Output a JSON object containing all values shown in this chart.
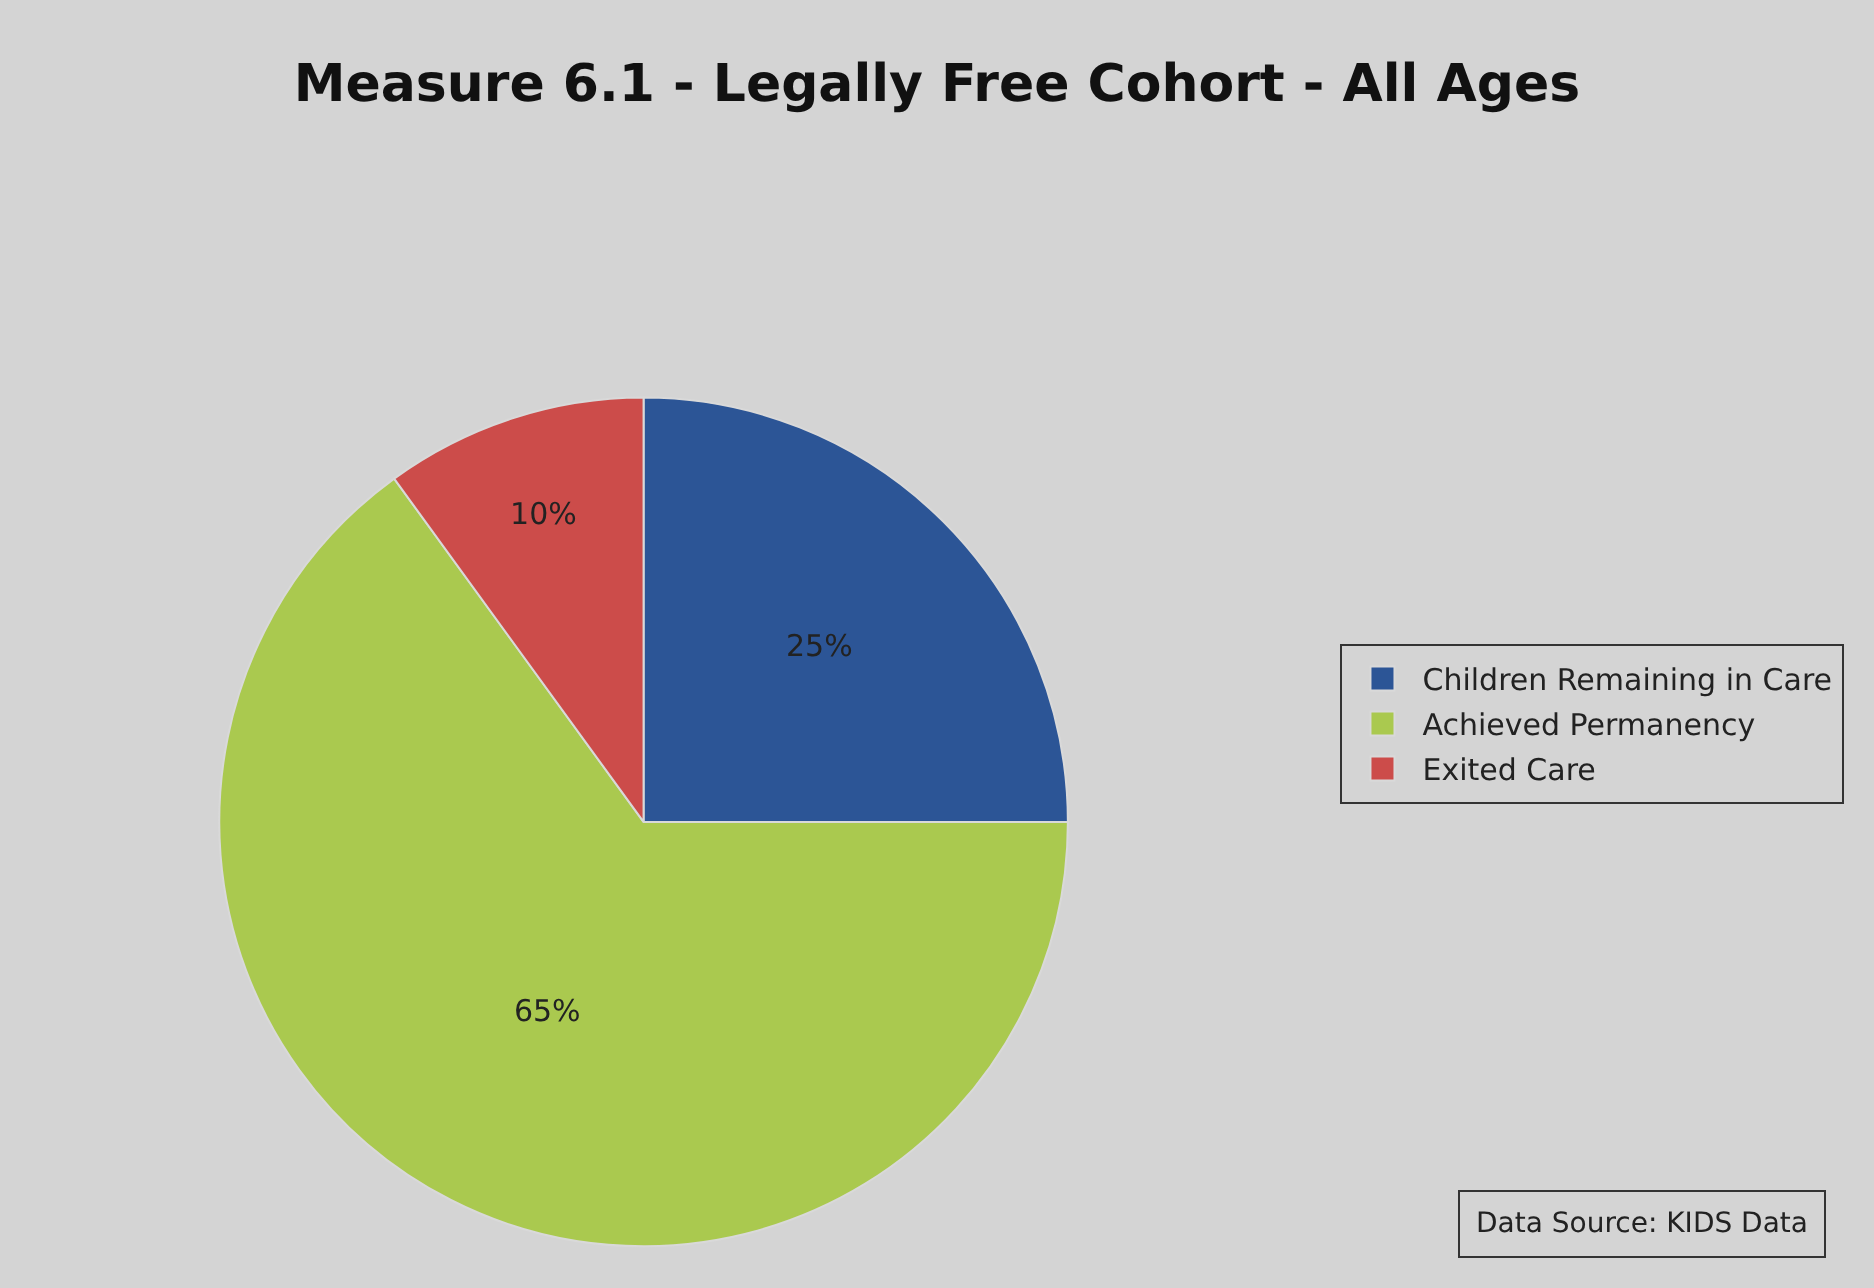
{
  "chart_data": {
    "type": "pie",
    "title": "Measure 6.1 - Legally Free Cohort - All Ages",
    "categories": [
      "Children Remaining in Care",
      "Achieved Permanency",
      "Exited Care"
    ],
    "values": [
      25,
      65,
      10
    ],
    "colors": [
      "#2c5596",
      "#aac94f",
      "#cc4c4a"
    ],
    "value_labels": [
      "25%",
      "65%",
      "10%"
    ],
    "legend": "right",
    "annotations": [
      "Data Source: KIDS Data"
    ]
  }
}
